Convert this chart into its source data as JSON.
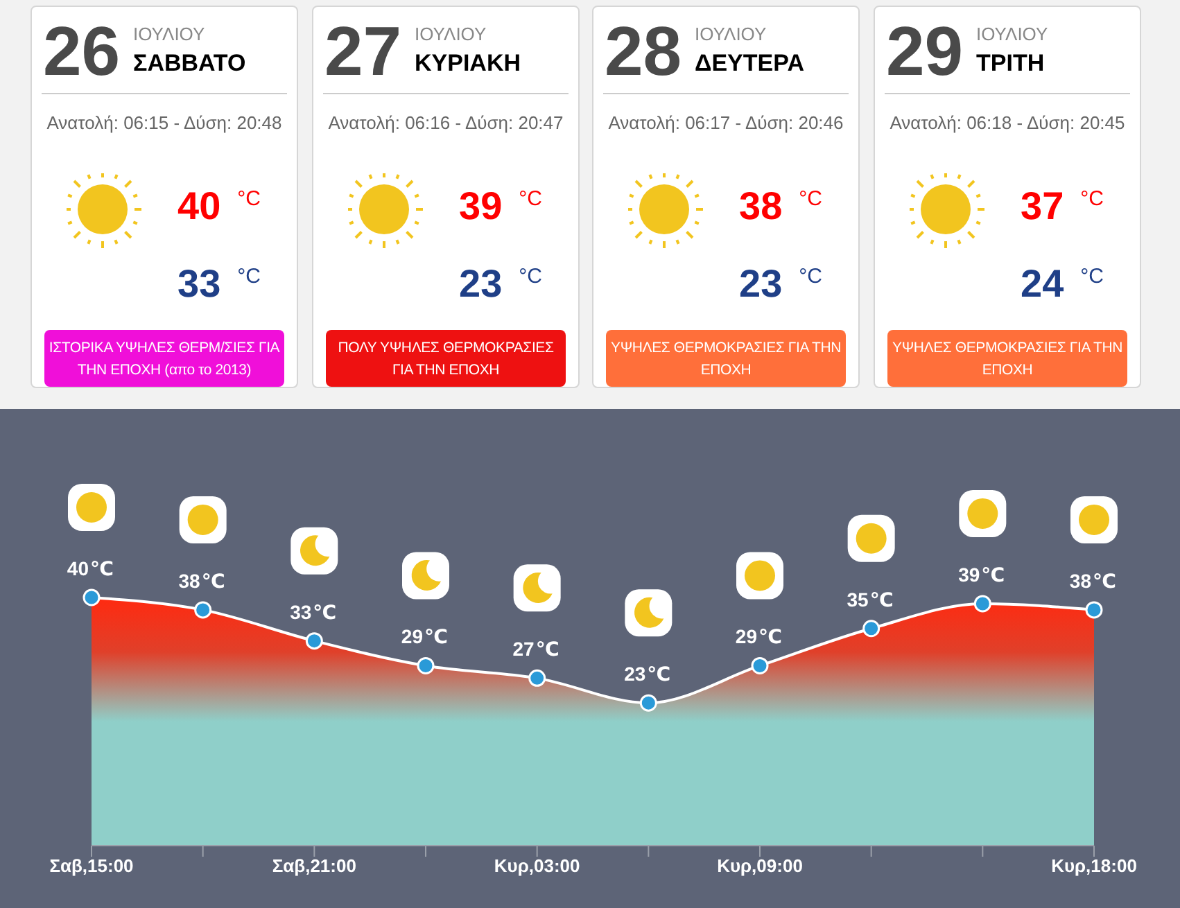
{
  "chart_data": [
    {
      "type": "other",
      "title": "26",
      "subtitle": "ΙΟΥΛΙΟΥ",
      "values": [
        40,
        33
      ],
      "colors": [
        "#ff0000",
        "#1f3f87"
      ],
      "data_labels": true,
      "color": "#f00fd9",
      "annotations": [
        "ΣΑΒΒΑΤΟ",
        "Ανατολή: 06:15 - Δύση: 20:48",
        "°C",
        "°C",
        "ΙΣΤΟΡΙΚΑ ΥΨΗΛΕΣ ΘΕΡΜ/ΣΙΕΣ ΓΙΑ ΤΗΝ ΕΠΟΧΗ (απο το 2013)"
      ]
    },
    {
      "type": "other",
      "title": "27",
      "subtitle": "ΙΟΥΛΙΟΥ",
      "values": [
        39,
        23
      ],
      "colors": [
        "#ff0000",
        "#1f3f87"
      ],
      "data_labels": true,
      "color": "#ee1111",
      "annotations": [
        "ΚΥΡΙΑΚΗ",
        "Ανατολή: 06:16 - Δύση: 20:47",
        "°C",
        "°C",
        "ΠΟΛΥ ΥΨΗΛΕΣ ΘΕΡΜΟΚΡΑΣΙΕΣ ΓΙΑ ΤΗΝ ΕΠΟΧΗ"
      ]
    },
    {
      "type": "other",
      "title": "28",
      "subtitle": "ΙΟΥΛΙΟΥ",
      "values": [
        38,
        23
      ],
      "colors": [
        "#ff0000",
        "#1f3f87"
      ],
      "data_labels": true,
      "color": "#ff6f3a",
      "annotations": [
        "ΔΕΥΤΕΡΑ",
        "Ανατολή: 06:17 - Δύση: 20:46",
        "°C",
        "°C",
        "ΥΨΗΛΕΣ ΘΕΡΜΟΚΡΑΣΙΕΣ ΓΙΑ ΤΗΝ ΕΠΟΧΗ"
      ]
    },
    {
      "type": "other",
      "title": "29",
      "subtitle": "ΙΟΥΛΙΟΥ",
      "values": [
        37,
        24
      ],
      "colors": [
        "#ff0000",
        "#1f3f87"
      ],
      "data_labels": true,
      "color": "#ff6f3a",
      "annotations": [
        "ΤΡΙΤΗ",
        "Ανατολή: 06:18 - Δύση: 20:45",
        "°C",
        "°C",
        "ΥΨΗΛΕΣ ΘΕΡΜΟΚΡΑΣΙΕΣ ΓΙΑ ΤΗΝ ΕΠΟΧΗ"
      ]
    },
    {
      "type": "area",
      "categories": [
        "Σαβ,15:00",
        null,
        "Σαβ,21:00",
        null,
        "Κυρ,03:00",
        null,
        "Κυρ,09:00",
        null,
        null,
        "Κυρ,18:00"
      ],
      "series": [
        {
          "color": "#ffffff",
          "values": [
            40,
            38,
            33,
            29,
            27,
            23,
            29,
            35,
            39,
            38
          ]
        }
      ],
      "data_labels": true,
      "ylabel": "℃",
      "marker": "circle",
      "grid": false
    }
  ]
}
